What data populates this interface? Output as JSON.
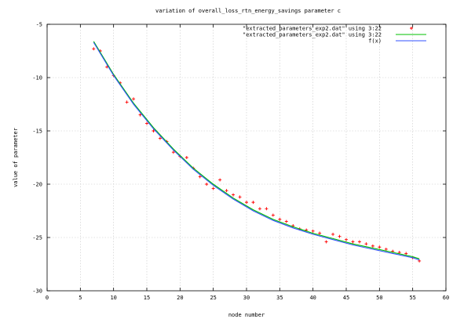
{
  "chart_data": {
    "type": "scatter",
    "title": "variation of overall_loss_rtn_energy_savings parameter c",
    "xlabel": "node number",
    "ylabel": "value of parameter",
    "xlim": [
      0,
      60
    ],
    "ylim": [
      -30,
      -5
    ],
    "xticks": [
      "0",
      "5",
      "10",
      "15",
      "20",
      "25",
      "30",
      "35",
      "40",
      "45",
      "50",
      "55",
      "60"
    ],
    "yticks": [
      "-5",
      "-10",
      "-15",
      "-20",
      "-25",
      "-30"
    ],
    "grid": true,
    "legend_position": "top-right",
    "series": [
      {
        "name": "\"extracted_parameters_exp2.dat\" using 3:22",
        "kind": "points",
        "marker": "plus",
        "color": "#ff0000",
        "x": [
          7,
          8,
          9,
          10,
          11,
          12,
          13,
          14,
          15,
          16,
          17,
          18,
          19,
          20,
          21,
          22,
          23,
          24,
          25,
          26,
          27,
          28,
          29,
          30,
          31,
          32,
          33,
          34,
          35,
          36,
          37,
          38,
          39,
          40,
          41,
          42,
          43,
          44,
          45,
          46,
          47,
          48,
          49,
          50,
          51,
          52,
          53,
          54,
          55,
          56
        ],
        "y": [
          -7.3,
          -7.5,
          -9.0,
          -9.8,
          -10.5,
          -12.3,
          -12.0,
          -13.5,
          -14.3,
          -15.0,
          -15.7,
          -16.0,
          -17.0,
          -17.4,
          -17.5,
          -18.5,
          -19.3,
          -20.0,
          -20.4,
          -19.6,
          -20.6,
          -21.0,
          -21.2,
          -21.7,
          -21.7,
          -22.3,
          -22.3,
          -22.9,
          -23.3,
          -23.5,
          -23.9,
          -24.2,
          -24.3,
          -24.4,
          -24.6,
          -25.4,
          -24.7,
          -24.9,
          -25.2,
          -25.4,
          -25.4,
          -25.6,
          -25.8,
          -25.9,
          -26.1,
          -26.3,
          -26.4,
          -26.5,
          -26.9,
          -27.2
        ]
      },
      {
        "name": "\"extracted_parameters_exp2.dat\" using 3:22",
        "kind": "line",
        "color": "#00c000",
        "x": [
          7,
          10,
          13,
          16,
          19,
          22,
          25,
          28,
          31,
          34,
          37,
          40,
          43,
          46,
          49,
          52,
          55,
          56
        ],
        "y": [
          -6.6,
          -9.7,
          -12.4,
          -14.7,
          -16.7,
          -18.5,
          -20.0,
          -21.3,
          -22.4,
          -23.3,
          -24.0,
          -24.6,
          -25.1,
          -25.6,
          -26.0,
          -26.4,
          -26.8,
          -27.0
        ]
      },
      {
        "name": "f(x)",
        "kind": "line",
        "color": "#3050ff",
        "x": [
          7,
          10,
          13,
          16,
          19,
          22,
          25,
          28,
          31,
          34,
          37,
          40,
          43,
          46,
          49,
          52,
          55,
          56
        ],
        "y": [
          -6.7,
          -9.8,
          -12.5,
          -14.8,
          -16.8,
          -18.6,
          -20.1,
          -21.4,
          -22.5,
          -23.4,
          -24.1,
          -24.7,
          -25.2,
          -25.7,
          -26.1,
          -26.5,
          -26.9,
          -27.1
        ]
      }
    ]
  }
}
